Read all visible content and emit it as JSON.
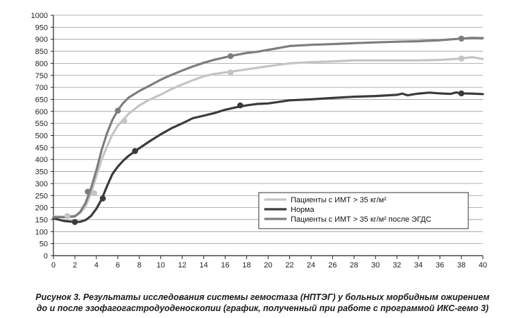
{
  "chart_data": {
    "type": "line",
    "title": "",
    "xlabel": "",
    "ylabel": "",
    "xlim": [
      0,
      40
    ],
    "ylim": [
      0,
      1000
    ],
    "x_ticks": [
      0,
      2,
      4,
      6,
      8,
      10,
      12,
      14,
      16,
      18,
      20,
      22,
      24,
      26,
      28,
      30,
      32,
      34,
      36,
      38,
      40
    ],
    "y_ticks": [
      0,
      50,
      100,
      150,
      200,
      250,
      300,
      350,
      400,
      450,
      500,
      550,
      600,
      650,
      700,
      750,
      800,
      850,
      900,
      950,
      1000
    ],
    "grid": "horizontal",
    "legend_position": "lower-right",
    "series": [
      {
        "name": "Пациенты с ИМТ > 35 кг/м²",
        "color": "#c4c4c4",
        "x": [
          0,
          1,
          1.5,
          2,
          2.5,
          3,
          3.5,
          4,
          4.5,
          5,
          5.5,
          6,
          6.5,
          7,
          8,
          9,
          10,
          11,
          12,
          13,
          14,
          15,
          16,
          16.5,
          18,
          20,
          22,
          24,
          26,
          28,
          30,
          32,
          34,
          36,
          38,
          39,
          40
        ],
        "y": [
          163,
          162,
          165,
          165,
          178,
          205,
          260,
          330,
          400,
          455,
          505,
          540,
          565,
          590,
          625,
          650,
          670,
          693,
          712,
          730,
          746,
          756,
          762,
          765,
          775,
          788,
          800,
          805,
          808,
          812,
          812,
          812,
          812,
          814,
          820,
          826,
          818
        ],
        "markers": [
          [
            1.3,
            165
          ],
          [
            3.8,
            260
          ],
          [
            6.6,
            560
          ],
          [
            16.5,
            762
          ],
          [
            38,
            820
          ]
        ]
      },
      {
        "name": "Норма",
        "color": "#3a3a3a",
        "x": [
          0,
          1,
          2,
          2.5,
          3,
          3.5,
          4,
          4.5,
          5,
          5.5,
          6,
          6.5,
          7,
          8,
          9,
          10,
          11,
          12,
          13,
          14,
          15,
          16,
          17,
          18,
          19,
          20,
          22,
          24,
          26,
          28,
          30,
          32,
          32.5,
          33,
          33.5,
          34,
          35,
          36,
          37,
          37.5,
          38,
          39,
          40
        ],
        "y": [
          155,
          144,
          140,
          141,
          148,
          165,
          195,
          235,
          290,
          340,
          370,
          395,
          415,
          447,
          477,
          505,
          530,
          550,
          572,
          582,
          593,
          607,
          617,
          625,
          631,
          633,
          646,
          650,
          656,
          661,
          664,
          669,
          674,
          667,
          671,
          674,
          678,
          675,
          673,
          679,
          675,
          674,
          672
        ],
        "markers": [
          [
            2,
            140
          ],
          [
            4.6,
            238
          ],
          [
            7.6,
            435
          ],
          [
            17.4,
            625
          ],
          [
            38,
            675
          ]
        ]
      },
      {
        "name": "Пациенты с ИМТ > 35 кг/м² после ЭГДС",
        "color": "#7d7d7d",
        "x": [
          0,
          1,
          2,
          2.5,
          3,
          3.5,
          4,
          4.5,
          5,
          5.5,
          6,
          6.5,
          7,
          8,
          9,
          10,
          11,
          12,
          13,
          14,
          15,
          16,
          16.5,
          17,
          18,
          19,
          20,
          22,
          24,
          26,
          28,
          30,
          32,
          34,
          36,
          38,
          39,
          40
        ],
        "y": [
          160,
          160,
          163,
          182,
          220,
          280,
          355,
          440,
          510,
          565,
          605,
          635,
          657,
          685,
          708,
          732,
          752,
          770,
          787,
          802,
          815,
          825,
          830,
          835,
          843,
          848,
          856,
          872,
          877,
          880,
          884,
          887,
          890,
          892,
          896,
          903,
          906,
          905
        ],
        "markers": [
          [
            3.2,
            266
          ],
          [
            6,
            603
          ],
          [
            16.5,
            830
          ],
          [
            38,
            903
          ]
        ]
      }
    ]
  },
  "caption": {
    "line1": "Рисунок 3.  Результаты исследования системы гемостаза (НПТЭГ) у больных морбидным ожирением",
    "line2": "до и после эзофагогастродуоденоскопии (график, полученный при работе с программой ИКС-гемо 3)"
  }
}
